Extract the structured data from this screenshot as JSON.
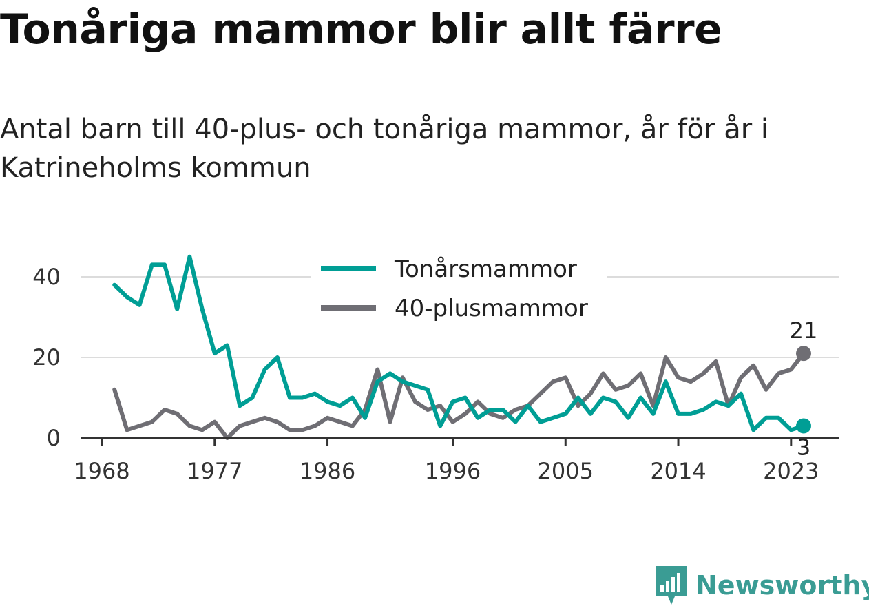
{
  "title": "Tonåriga mammor blir allt färre",
  "subtitle": "Antal barn till 40-plus- och tonåriga mammor, år för år i Katrineholms kommun",
  "brand": {
    "name": "Newsworthy",
    "color": "#3a9c94",
    "icon": "newsworthy-logo-icon"
  },
  "chart_data": {
    "type": "line",
    "title": "Tonåriga mammor blir allt färre",
    "subtitle": "Antal barn till 40-plus- och tonåriga mammor, år för år i Katrineholms kommun",
    "xlabel": "",
    "ylabel": "",
    "xlim": [
      1968,
      2025
    ],
    "ylim": [
      0,
      45
    ],
    "x_ticks": [
      1968,
      1977,
      1986,
      1996,
      2005,
      2014,
      2023
    ],
    "y_ticks": [
      0,
      20,
      40
    ],
    "grid": true,
    "legend_position": "top-center",
    "x": [
      1969,
      1970,
      1971,
      1972,
      1973,
      1974,
      1975,
      1976,
      1977,
      1978,
      1979,
      1980,
      1981,
      1982,
      1983,
      1984,
      1985,
      1986,
      1987,
      1988,
      1989,
      1990,
      1991,
      1992,
      1993,
      1994,
      1995,
      1996,
      1997,
      1998,
      1999,
      2000,
      2001,
      2002,
      2003,
      2004,
      2005,
      2006,
      2007,
      2008,
      2009,
      2010,
      2011,
      2012,
      2013,
      2014,
      2015,
      2016,
      2017,
      2018,
      2019,
      2020,
      2021,
      2022,
      2023,
      2024
    ],
    "series": [
      {
        "name": "Tonårsmammor",
        "color": "#009e95",
        "end_label": "3",
        "values": [
          38,
          35,
          33,
          43,
          43,
          32,
          45,
          32,
          21,
          23,
          8,
          10,
          17,
          20,
          10,
          10,
          11,
          9,
          8,
          10,
          5,
          14,
          16,
          14,
          13,
          12,
          3,
          9,
          10,
          5,
          7,
          7,
          4,
          8,
          4,
          5,
          6,
          10,
          6,
          10,
          9,
          5,
          10,
          6,
          14,
          6,
          6,
          7,
          9,
          8,
          11,
          2,
          5,
          5,
          2,
          3
        ]
      },
      {
        "name": "40-plusmammor",
        "color": "#6f6e74",
        "end_label": "21",
        "values": [
          12,
          2,
          3,
          4,
          7,
          6,
          3,
          2,
          4,
          0,
          3,
          4,
          5,
          4,
          2,
          2,
          3,
          5,
          4,
          3,
          7,
          17,
          4,
          15,
          9,
          7,
          8,
          4,
          6,
          9,
          6,
          5,
          7,
          8,
          11,
          14,
          15,
          8,
          11,
          16,
          12,
          13,
          16,
          8,
          20,
          15,
          14,
          16,
          19,
          8,
          15,
          18,
          12,
          16,
          17,
          21
        ]
      }
    ]
  }
}
